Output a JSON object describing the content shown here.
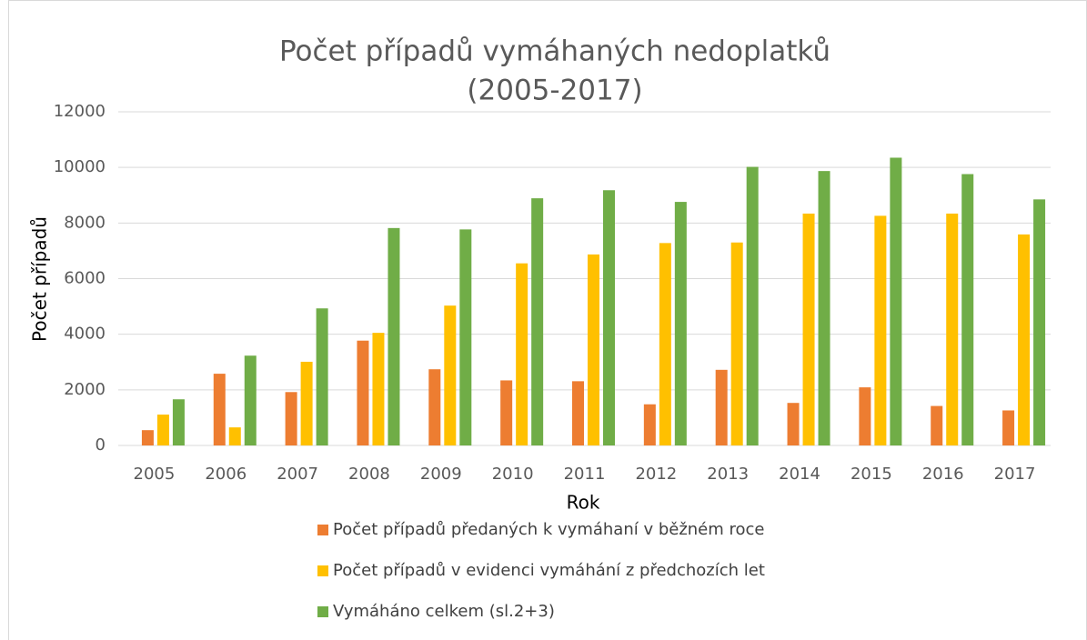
{
  "chart_data": {
    "type": "bar",
    "title": [
      "Počet případů vymáhaných nedoplatků",
      "(2005-2017)"
    ],
    "xlabel": "Rok",
    "ylabel": "Počet případů",
    "categories": [
      "2005",
      "2006",
      "2007",
      "2008",
      "2009",
      "2010",
      "2011",
      "2012",
      "2013",
      "2014",
      "2015",
      "2016",
      "2017"
    ],
    "series": [
      {
        "name": "Počet případů předaných k vymáhaní v běžném roce",
        "color": "#ed7d31",
        "values": [
          550,
          2580,
          1920,
          3770,
          2740,
          2340,
          2310,
          1480,
          2720,
          1530,
          2090,
          1420,
          1260
        ]
      },
      {
        "name": "Počet případů v evidenci vymáhání z předchozích let",
        "color": "#ffc000",
        "values": [
          1110,
          650,
          3010,
          4050,
          5030,
          6550,
          6870,
          7280,
          7300,
          8340,
          8260,
          8340,
          7590
        ]
      },
      {
        "name": "Vymáháno celkem (sl.2+3)",
        "color": "#70ad47",
        "values": [
          1660,
          3230,
          4930,
          7820,
          7770,
          8890,
          9180,
          8760,
          10020,
          9870,
          10350,
          9760,
          8850
        ]
      }
    ],
    "ylim": [
      0,
      12000
    ],
    "yticks": [
      0,
      2000,
      4000,
      6000,
      8000,
      10000,
      12000
    ],
    "grid": true,
    "legend": "bottom"
  }
}
